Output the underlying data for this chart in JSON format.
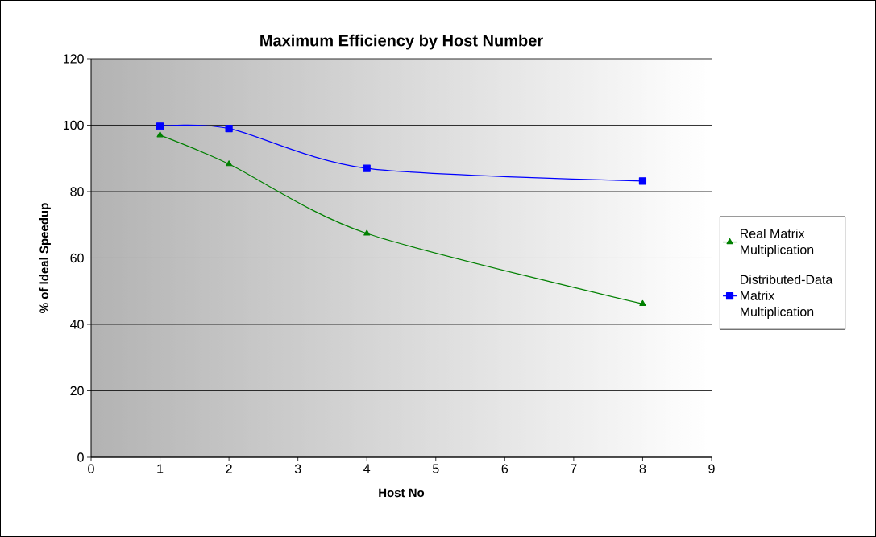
{
  "chart_data": {
    "type": "line",
    "title": "Maximum Efficiency by Host Number",
    "xlabel": "Host No",
    "ylabel": "% of Ideal Speedup",
    "x": [
      1,
      2,
      4,
      8
    ],
    "series": [
      {
        "name": "Real Matrix Multiplication",
        "color": "#008000",
        "marker": "triangle",
        "values": [
          97,
          88.3,
          67.4,
          46.2
        ]
      },
      {
        "name": "Distributed-Data Matrix Multiplication",
        "color": "#0000ff",
        "marker": "square",
        "values": [
          99.7,
          99,
          87,
          83.2
        ]
      }
    ],
    "xlim": [
      0,
      9
    ],
    "xticks": [
      0,
      1,
      2,
      3,
      4,
      5,
      6,
      7,
      8,
      9
    ],
    "ylim": [
      0,
      120
    ],
    "yticks": [
      0,
      20,
      40,
      60,
      80,
      100,
      120
    ],
    "grid": "y",
    "legend": "right",
    "line_style": "solid"
  }
}
